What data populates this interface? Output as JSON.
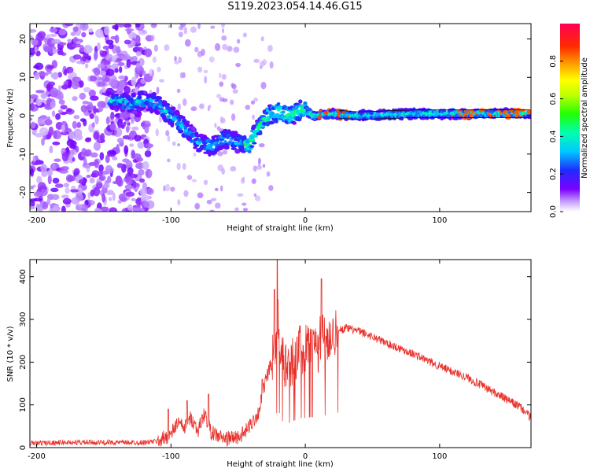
{
  "title": "S119.2023.054.14.46.G15",
  "chart_data": [
    {
      "type": "heatmap",
      "xlabel": "Height of straight line (km)",
      "ylabel": "Frequency (Hz)",
      "xlim": [
        -205,
        168
      ],
      "ylim": [
        -25,
        24
      ],
      "x_ticks": [
        "-200",
        "-100",
        "0",
        "100"
      ],
      "y_ticks": [
        "20",
        "10",
        "0",
        "-10",
        "-20"
      ],
      "colorbar": {
        "label": "Normalized spectral amplitude",
        "range": [
          0,
          1
        ],
        "ticks": [
          "0.0",
          "0.2",
          "0.4",
          "0.6",
          "0.8"
        ]
      },
      "ridge_track": {
        "x": [
          -140,
          -130,
          -120,
          -110,
          -100,
          -90,
          -80,
          -70,
          -60,
          -50,
          -42,
          -35,
          -28,
          -20,
          -10,
          -2,
          5,
          20,
          40,
          80,
          120,
          168
        ],
        "y": [
          4,
          3,
          4,
          3,
          0,
          -3,
          -7,
          -8,
          -6,
          -7,
          -8,
          -3,
          0,
          1,
          0,
          2,
          0,
          0.5,
          0,
          0.5,
          0.5,
          0.5
        ]
      }
    },
    {
      "type": "line",
      "xlabel": "Height of straight line (km)",
      "ylabel": "SNR (10 * v/v)",
      "xlim": [
        -205,
        168
      ],
      "ylim": [
        0,
        440
      ],
      "x_ticks": [
        "-200",
        "-100",
        "0",
        "100"
      ],
      "y_ticks": [
        "400",
        "300",
        "200",
        "100",
        "0"
      ],
      "color": "#e8302a",
      "envelope": {
        "x": [
          -205,
          -180,
          -150,
          -120,
          -110,
          -100,
          -95,
          -90,
          -85,
          -80,
          -75,
          -70,
          -60,
          -50,
          -45,
          -35,
          -30,
          -25,
          -22,
          -20,
          -18,
          -15,
          -10,
          -5,
          0,
          5,
          10,
          12,
          15,
          20,
          25,
          30,
          40,
          50,
          60,
          80,
          100,
          120,
          140,
          160,
          168
        ],
        "y": [
          10,
          12,
          12,
          12,
          15,
          30,
          60,
          45,
          70,
          40,
          80,
          35,
          20,
          25,
          35,
          80,
          150,
          200,
          250,
          300,
          220,
          180,
          200,
          230,
          230,
          240,
          230,
          280,
          250,
          265,
          275,
          280,
          272,
          260,
          245,
          220,
          190,
          165,
          130,
          95,
          70
        ]
      },
      "peaks": [
        {
          "x": -102,
          "y": 90
        },
        {
          "x": -88,
          "y": 110
        },
        {
          "x": -72,
          "y": 125
        },
        {
          "x": -32,
          "y": 160
        },
        {
          "x": -23,
          "y": 370
        },
        {
          "x": -21,
          "y": 440
        },
        {
          "x": 12,
          "y": 395
        }
      ]
    }
  ]
}
